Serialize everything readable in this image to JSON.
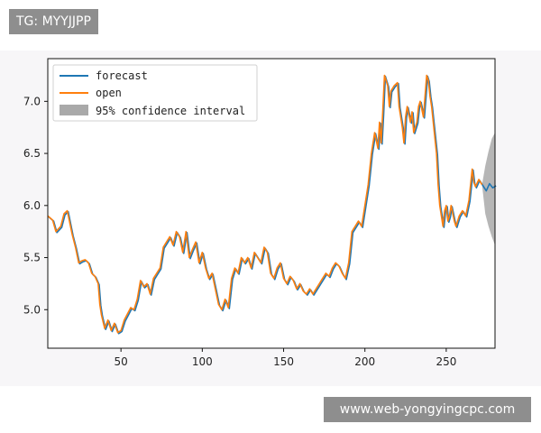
{
  "watermarks": {
    "top": "TG: MYYJJPP",
    "bottom": "www.web-yongyingcpc.com"
  },
  "colors": {
    "forecast": "#1f77b4",
    "open": "#ff7f0e",
    "confidence": "#a9a9a9"
  },
  "chart_data": {
    "type": "line",
    "title": "",
    "xlabel": "",
    "ylabel": "",
    "xlim": [
      5,
      280
    ],
    "ylim": [
      4.63,
      7.41
    ],
    "xticks": [
      50,
      100,
      150,
      200,
      250
    ],
    "yticks": [
      5.0,
      5.5,
      6.0,
      6.5,
      7.0
    ],
    "xtick_labels": [
      "50",
      "100",
      "150",
      "200",
      "250"
    ],
    "ytick_labels": [
      "5.0",
      "5.5",
      "6.0",
      "6.5",
      "7.0"
    ],
    "grid": false,
    "legend_position": "top-left",
    "legend": [
      "forecast",
      "open",
      "95% confidence interval"
    ],
    "anchors": [
      [
        5,
        5.9
      ],
      [
        8,
        5.86
      ],
      [
        10,
        5.75
      ],
      [
        13,
        5.8
      ],
      [
        15,
        5.92
      ],
      [
        17,
        5.95
      ],
      [
        20,
        5.72
      ],
      [
        22,
        5.6
      ],
      [
        24,
        5.45
      ],
      [
        26,
        5.47
      ],
      [
        28,
        5.48
      ],
      [
        30,
        5.45
      ],
      [
        32,
        5.35
      ],
      [
        34,
        5.32
      ],
      [
        36,
        5.25
      ],
      [
        37,
        5.05
      ],
      [
        38,
        4.95
      ],
      [
        40,
        4.82
      ],
      [
        42,
        4.9
      ],
      [
        44,
        4.8
      ],
      [
        46,
        4.87
      ],
      [
        48,
        4.78
      ],
      [
        50,
        4.8
      ],
      [
        52,
        4.9
      ],
      [
        54,
        4.96
      ],
      [
        56,
        5.02
      ],
      [
        58,
        5.0
      ],
      [
        60,
        5.1
      ],
      [
        62,
        5.28
      ],
      [
        64,
        5.22
      ],
      [
        66,
        5.25
      ],
      [
        68,
        5.15
      ],
      [
        70,
        5.3
      ],
      [
        72,
        5.35
      ],
      [
        74,
        5.4
      ],
      [
        76,
        5.6
      ],
      [
        78,
        5.65
      ],
      [
        80,
        5.7
      ],
      [
        82,
        5.62
      ],
      [
        84,
        5.75
      ],
      [
        86,
        5.7
      ],
      [
        88,
        5.55
      ],
      [
        90,
        5.75
      ],
      [
        92,
        5.5
      ],
      [
        94,
        5.58
      ],
      [
        96,
        5.65
      ],
      [
        98,
        5.45
      ],
      [
        100,
        5.55
      ],
      [
        102,
        5.4
      ],
      [
        104,
        5.3
      ],
      [
        106,
        5.35
      ],
      [
        108,
        5.2
      ],
      [
        110,
        5.05
      ],
      [
        112,
        5.0
      ],
      [
        114,
        5.1
      ],
      [
        116,
        5.02
      ],
      [
        118,
        5.3
      ],
      [
        120,
        5.4
      ],
      [
        122,
        5.35
      ],
      [
        124,
        5.5
      ],
      [
        126,
        5.45
      ],
      [
        128,
        5.5
      ],
      [
        130,
        5.4
      ],
      [
        132,
        5.55
      ],
      [
        134,
        5.5
      ],
      [
        136,
        5.45
      ],
      [
        138,
        5.6
      ],
      [
        140,
        5.55
      ],
      [
        142,
        5.35
      ],
      [
        144,
        5.3
      ],
      [
        146,
        5.4
      ],
      [
        148,
        5.45
      ],
      [
        150,
        5.3
      ],
      [
        152,
        5.25
      ],
      [
        154,
        5.32
      ],
      [
        156,
        5.28
      ],
      [
        158,
        5.2
      ],
      [
        160,
        5.25
      ],
      [
        162,
        5.18
      ],
      [
        164,
        5.15
      ],
      [
        166,
        5.2
      ],
      [
        168,
        5.15
      ],
      [
        170,
        5.2
      ],
      [
        172,
        5.25
      ],
      [
        174,
        5.3
      ],
      [
        176,
        5.35
      ],
      [
        178,
        5.32
      ],
      [
        180,
        5.4
      ],
      [
        182,
        5.45
      ],
      [
        184,
        5.42
      ],
      [
        186,
        5.35
      ],
      [
        188,
        5.3
      ],
      [
        190,
        5.45
      ],
      [
        192,
        5.75
      ],
      [
        194,
        5.8
      ],
      [
        196,
        5.85
      ],
      [
        198,
        5.8
      ],
      [
        200,
        6.0
      ],
      [
        202,
        6.2
      ],
      [
        204,
        6.5
      ],
      [
        206,
        6.7
      ],
      [
        208,
        6.55
      ],
      [
        209,
        6.8
      ],
      [
        210,
        6.6
      ],
      [
        211,
        6.9
      ],
      [
        212,
        7.25
      ],
      [
        214,
        7.15
      ],
      [
        215,
        6.95
      ],
      [
        216,
        7.1
      ],
      [
        218,
        7.15
      ],
      [
        220,
        7.18
      ],
      [
        221,
        6.95
      ],
      [
        223,
        6.75
      ],
      [
        224,
        6.6
      ],
      [
        225,
        6.85
      ],
      [
        226,
        6.95
      ],
      [
        228,
        6.8
      ],
      [
        229,
        6.9
      ],
      [
        230,
        6.7
      ],
      [
        232,
        6.8
      ],
      [
        233,
        6.95
      ],
      [
        234,
        7.0
      ],
      [
        236,
        6.85
      ],
      [
        238,
        7.25
      ],
      [
        239,
        7.2
      ],
      [
        240,
        7.05
      ],
      [
        241,
        6.95
      ],
      [
        242,
        6.8
      ],
      [
        244,
        6.5
      ],
      [
        245,
        6.2
      ],
      [
        246,
        6.0
      ],
      [
        247,
        5.9
      ],
      [
        248,
        5.8
      ],
      [
        249,
        5.95
      ],
      [
        250,
        6.0
      ],
      [
        251,
        5.85
      ],
      [
        252,
        5.9
      ],
      [
        253,
        6.0
      ],
      [
        255,
        5.85
      ],
      [
        256,
        5.8
      ],
      [
        258,
        5.9
      ],
      [
        260,
        5.95
      ],
      [
        262,
        5.9
      ],
      [
        264,
        6.05
      ],
      [
        266,
        6.35
      ],
      [
        267,
        6.22
      ],
      [
        268,
        6.18
      ],
      [
        270,
        6.25
      ],
      [
        272,
        6.2
      ],
      [
        274,
        6.15
      ],
      [
        276,
        6.22
      ],
      [
        278,
        6.18
      ],
      [
        280,
        6.2
      ]
    ],
    "series": [
      {
        "name": "forecast",
        "color": "#1f77b4",
        "offset_x": 0.6,
        "offset_y": -0.01
      },
      {
        "name": "open",
        "color": "#ff7f0e",
        "offset_x": 0,
        "offset_y": 0,
        "end_x": 272
      }
    ],
    "confidence_band": {
      "name": "95% confidence interval",
      "color": "#a9a9a9",
      "start_x": 272,
      "end_x": 280,
      "points": [
        [
          272,
          6.2,
          6.2
        ],
        [
          274,
          6.38,
          5.92
        ],
        [
          276,
          6.52,
          5.8
        ],
        [
          278,
          6.64,
          5.7
        ],
        [
          280,
          6.7,
          5.62
        ]
      ]
    }
  }
}
